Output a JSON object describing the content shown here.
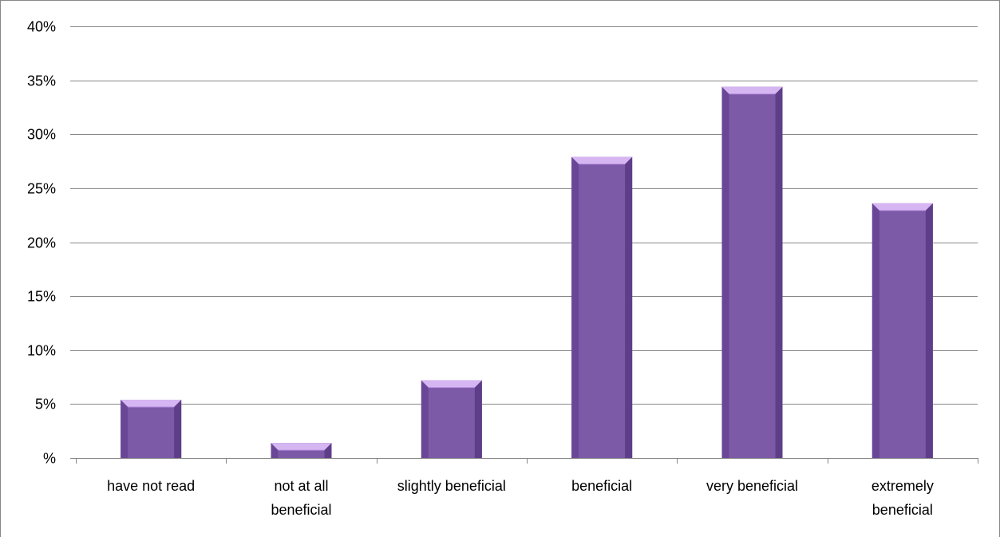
{
  "chart_data": {
    "type": "bar",
    "categories": [
      [
        "have not read"
      ],
      [
        "not at all",
        "beneficial"
      ],
      [
        "slightly beneficial"
      ],
      [
        "beneficial"
      ],
      [
        "very beneficial"
      ],
      [
        "extremely",
        "beneficial"
      ]
    ],
    "values": [
      5.4,
      1.4,
      7.2,
      27.9,
      34.4,
      23.6
    ],
    "y_ticks": [
      "%",
      "5%",
      "10%",
      "15%",
      "20%",
      "25%",
      "30%",
      "35%",
      "40%"
    ],
    "ylim": [
      0,
      40
    ],
    "grid": true,
    "legend": "none",
    "colors": {
      "bar_front": "#7d5aa8",
      "bar_side_left": "#6a4796",
      "bar_side_right": "#5e3e88",
      "bar_top": "#d6b6f2",
      "bar_top_inner": "#b98ee0",
      "gridline": "#878787",
      "frame": "#878787"
    }
  }
}
